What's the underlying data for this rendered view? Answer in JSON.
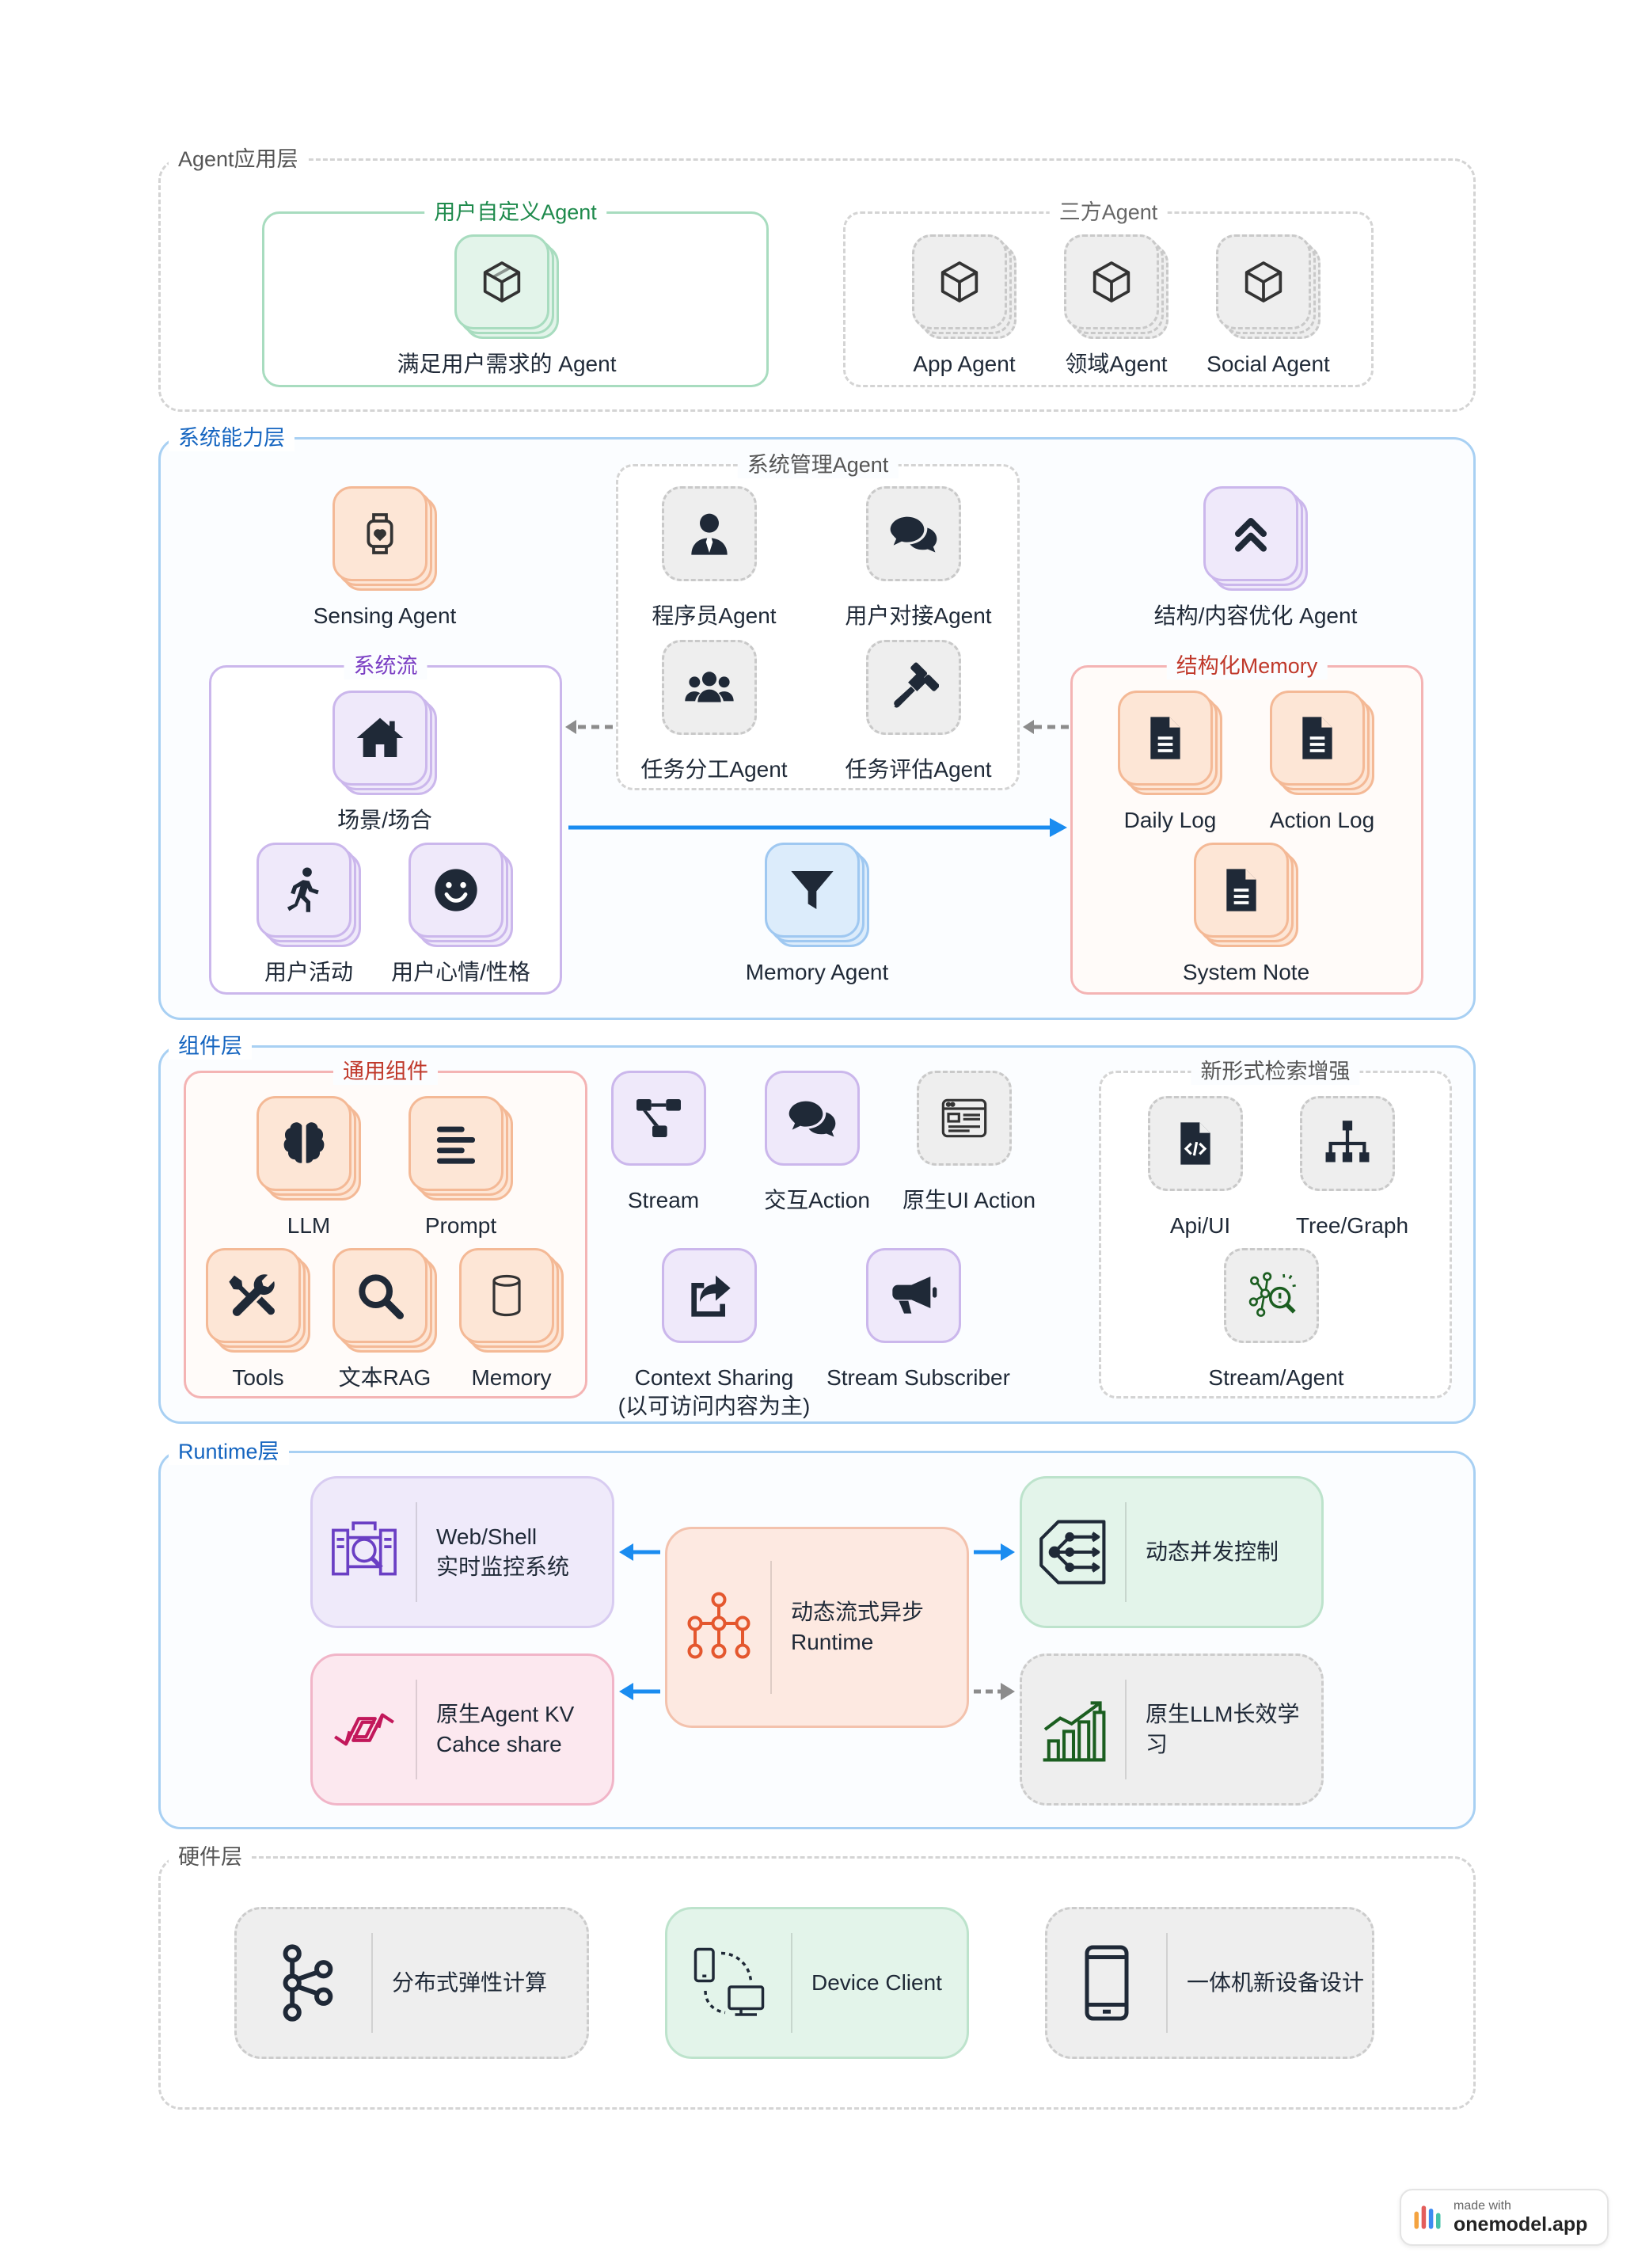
{
  "layers": {
    "agent_app": {
      "title": "Agent应用层",
      "custom_group": {
        "title": "用户自定义Agent",
        "node": "满足用户需求的 Agent"
      },
      "third_group": {
        "title": "三方Agent",
        "nodes": [
          "App Agent",
          "领域Agent",
          "Social Agent"
        ]
      }
    },
    "system": {
      "title": "系统能力层",
      "sensing": "Sensing Agent",
      "manage_group": {
        "title": "系统管理Agent",
        "nodes": [
          "程序员Agent",
          "用户对接Agent",
          "任务分工Agent",
          "任务评估Agent"
        ]
      },
      "optimize": "结构/内容优化 Agent",
      "flow_group": {
        "title": "系统流",
        "nodes": [
          "场景/场合",
          "用户活动",
          "用户心情/性格"
        ]
      },
      "memory_agent": "Memory Agent",
      "memory_group": {
        "title": "结构化Memory",
        "nodes": [
          "Daily Log",
          "Action Log",
          "System Note"
        ]
      }
    },
    "component": {
      "title": "组件层",
      "common_group": {
        "title": "通用组件",
        "nodes": [
          "LLM",
          "Prompt",
          "Tools",
          "文本RAG",
          "Memory"
        ]
      },
      "middle": [
        "Stream",
        "交互Action",
        "原生UI Action",
        "Context Sharing",
        "Stream Subscriber"
      ],
      "context_sub": "(以可访问内容为主)",
      "search_group": {
        "title": "新形式检索增强",
        "nodes": [
          "Api/UI",
          "Tree/Graph",
          "Stream/Agent"
        ]
      }
    },
    "runtime": {
      "title": "Runtime层",
      "cards": {
        "monitor": "Web/Shell\n实时监控系统",
        "kv": "原生Agent KV\nCahce share",
        "center": "动态流式异步\nRuntime",
        "concurrency": "动态并发控制",
        "learning": "原生LLM长效学\n习"
      }
    },
    "hardware": {
      "title": "硬件层",
      "cards": [
        "分布式弹性计算",
        "Device Client",
        "一体机新设备设计"
      ]
    }
  },
  "badge": {
    "small": "made with",
    "brand": "onemodel.app"
  },
  "colors": {
    "blue_arrow": "#1a8cf0",
    "gray_arrow": "#8c8c8c",
    "system_border": "#a8d0f3",
    "component_title": "#1565c0"
  }
}
